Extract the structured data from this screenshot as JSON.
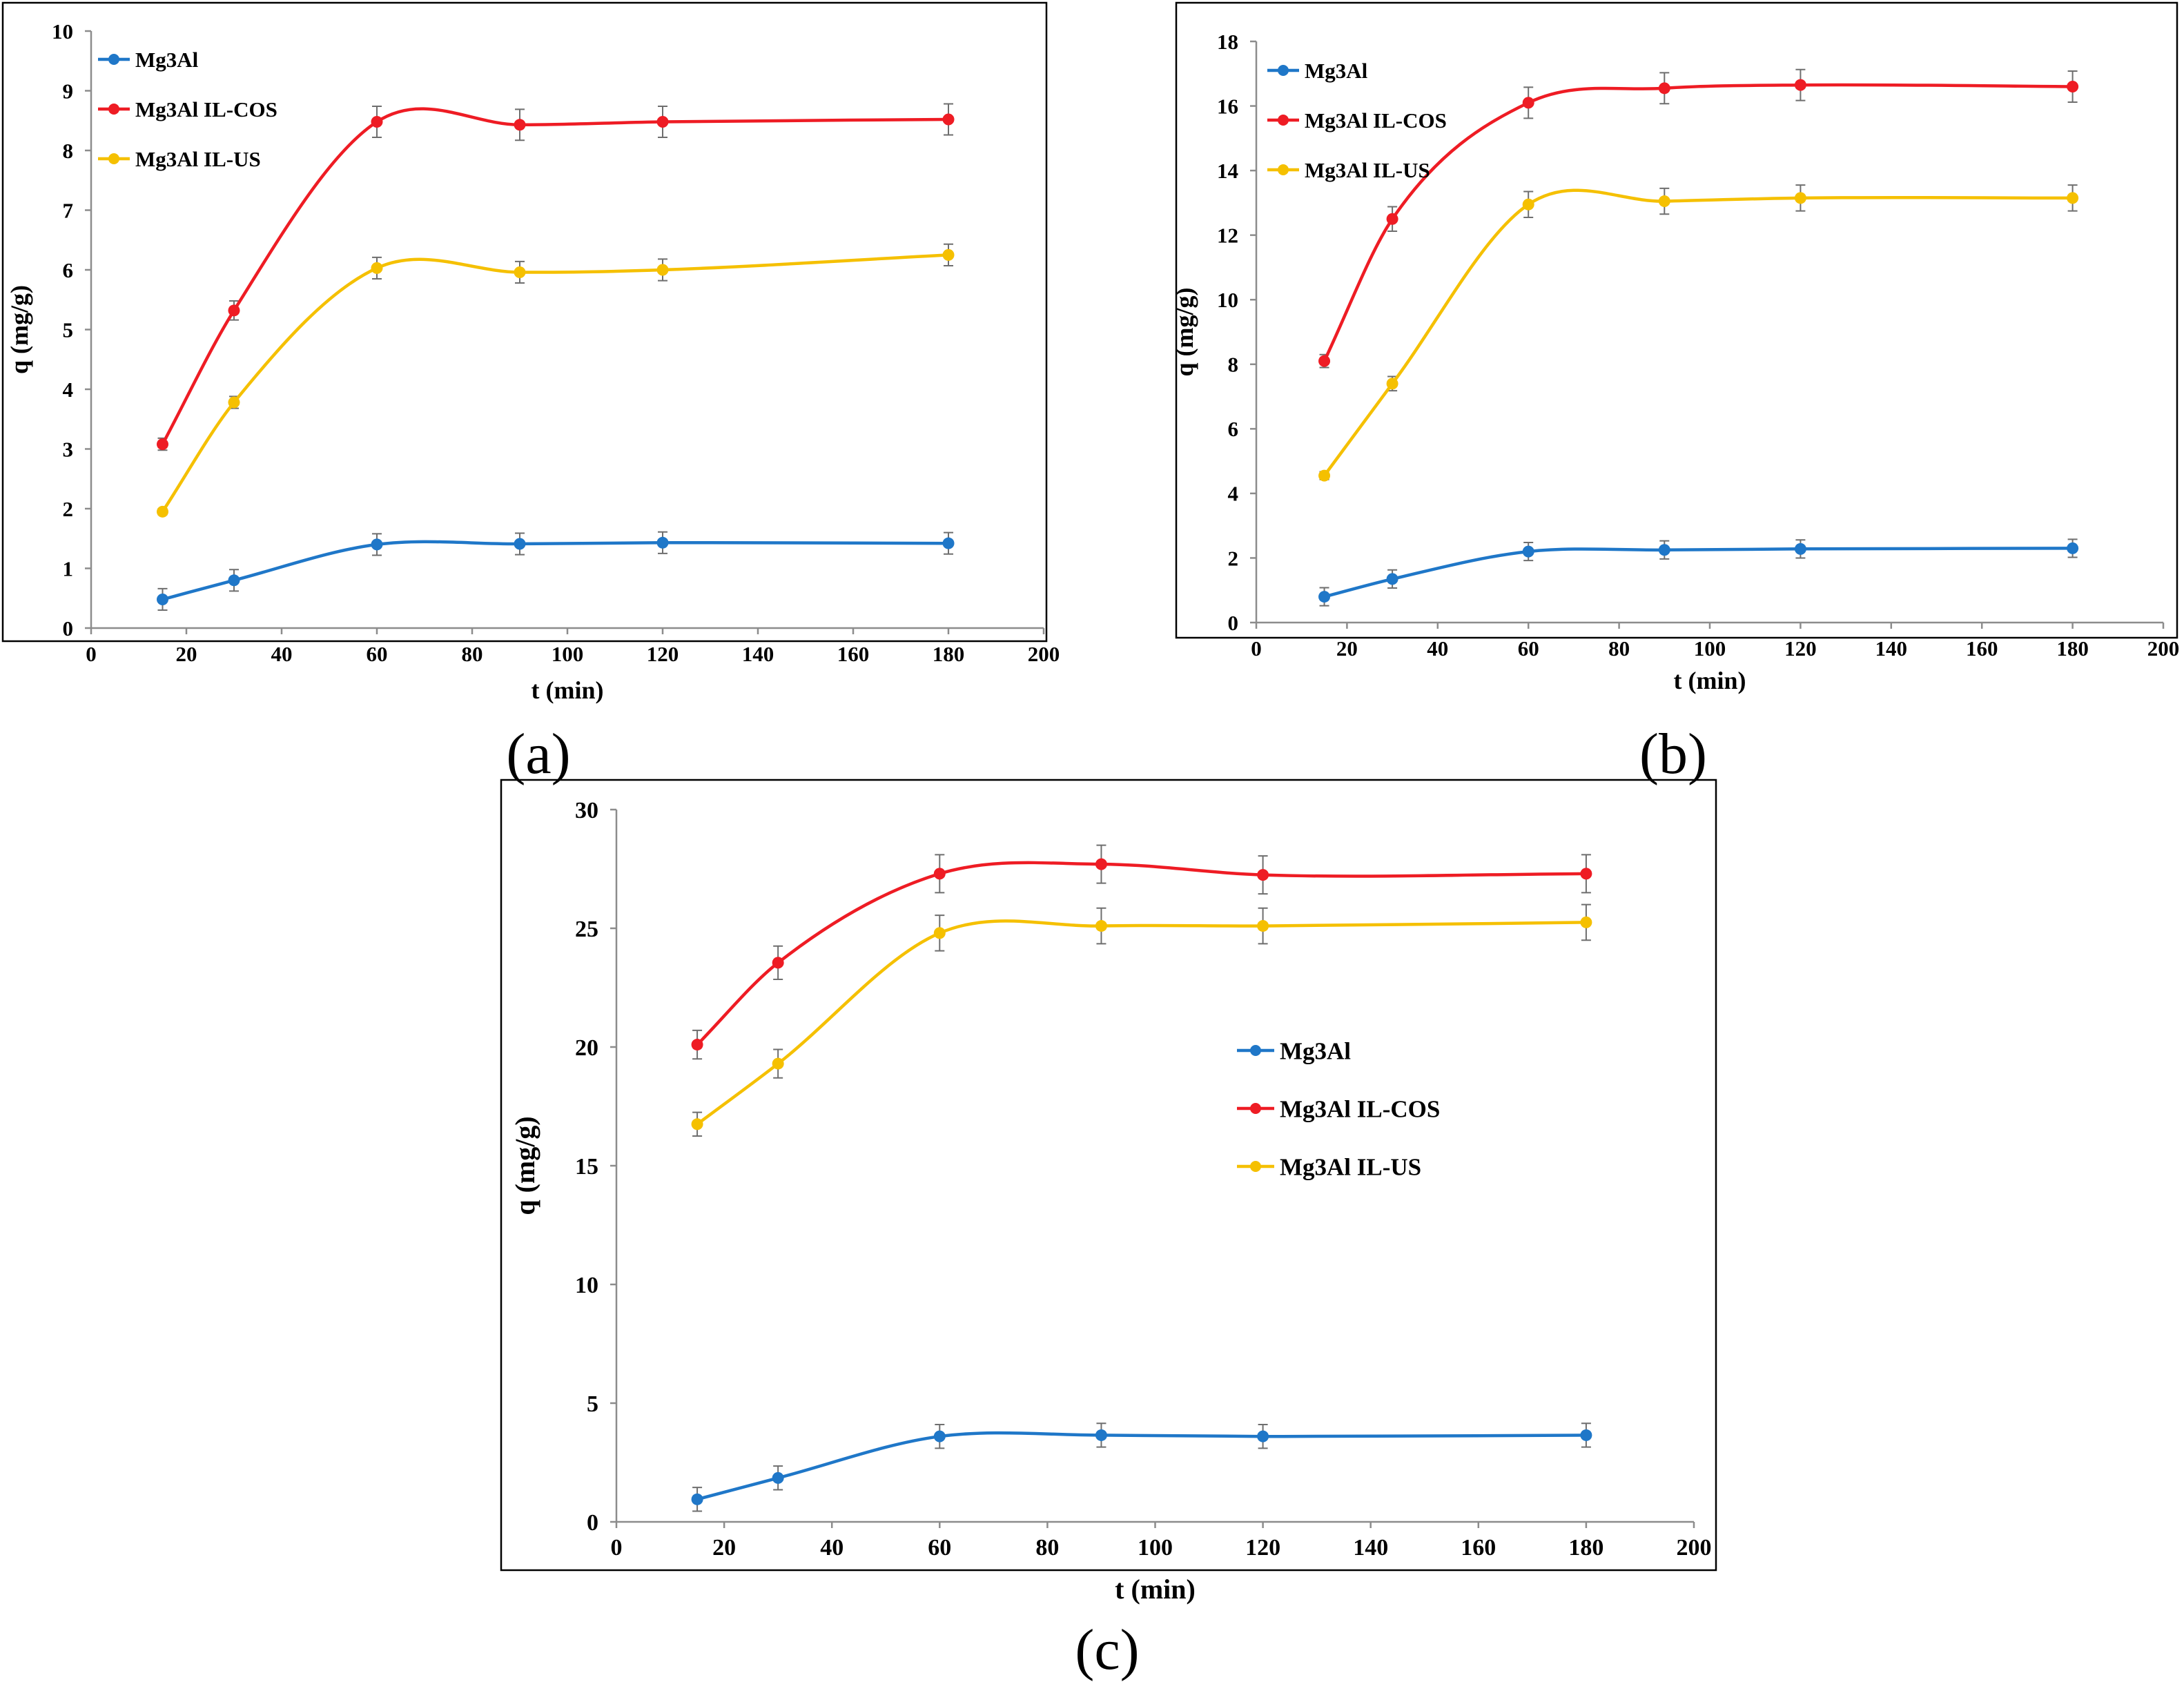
{
  "figure": {
    "panels": [
      "(a)",
      "(b)",
      "(c)"
    ]
  },
  "colors": {
    "Mg3Al": "#1f77c8",
    "Mg3Al IL-COS": "#ee1c24",
    "Mg3Al IL-US": "#f5c000"
  },
  "chart_data": [
    {
      "panel": "(a)",
      "type": "line",
      "xlabel": "t (min)",
      "ylabel": "q (mg/g)",
      "xlim": [
        0,
        200
      ],
      "ylim": [
        0,
        10
      ],
      "xticks": [
        0,
        20,
        40,
        60,
        80,
        100,
        120,
        140,
        160,
        180,
        200
      ],
      "yticks": [
        0,
        1,
        2,
        3,
        4,
        5,
        6,
        7,
        8,
        9,
        10
      ],
      "legend": "top-left",
      "x": [
        15,
        30,
        60,
        90,
        120,
        180
      ],
      "series": [
        {
          "name": "Mg3Al",
          "values": [
            0.48,
            0.8,
            1.4,
            1.41,
            1.43,
            1.42
          ],
          "errors": [
            0.18,
            0.18,
            0.18,
            0.18,
            0.18,
            0.18
          ]
        },
        {
          "name": "Mg3Al IL-COS",
          "values": [
            3.08,
            5.32,
            8.48,
            8.43,
            8.48,
            8.52
          ],
          "errors": [
            0.1,
            0.16,
            0.26,
            0.26,
            0.26,
            0.26
          ]
        },
        {
          "name": "Mg3Al IL-US",
          "values": [
            1.95,
            3.78,
            6.03,
            5.96,
            6.0,
            6.25
          ],
          "errors": [
            0.05,
            0.1,
            0.18,
            0.18,
            0.18,
            0.18
          ]
        }
      ]
    },
    {
      "panel": "(b)",
      "type": "line",
      "xlabel": "t (min)",
      "ylabel": "q (mg/g)",
      "xlim": [
        0,
        200
      ],
      "ylim": [
        0,
        18
      ],
      "xticks": [
        0,
        20,
        40,
        60,
        80,
        100,
        120,
        140,
        160,
        180,
        200
      ],
      "yticks": [
        0,
        2,
        4,
        6,
        8,
        10,
        12,
        14,
        16,
        18
      ],
      "legend": "top-left",
      "x": [
        15,
        30,
        60,
        90,
        120,
        180
      ],
      "series": [
        {
          "name": "Mg3Al",
          "values": [
            0.8,
            1.35,
            2.2,
            2.25,
            2.28,
            2.3
          ],
          "errors": [
            0.28,
            0.28,
            0.28,
            0.28,
            0.28,
            0.28
          ]
        },
        {
          "name": "Mg3Al IL-COS",
          "values": [
            8.1,
            12.5,
            16.1,
            16.55,
            16.65,
            16.6
          ],
          "errors": [
            0.2,
            0.38,
            0.48,
            0.48,
            0.48,
            0.48
          ]
        },
        {
          "name": "Mg3Al IL-US",
          "values": [
            4.55,
            7.4,
            12.95,
            13.05,
            13.15,
            13.15
          ],
          "errors": [
            0.12,
            0.22,
            0.4,
            0.4,
            0.4,
            0.4
          ]
        }
      ]
    },
    {
      "panel": "(c)",
      "type": "line",
      "xlabel": "t (min)",
      "ylabel": "q (mg/g)",
      "xlim": [
        0,
        200
      ],
      "ylim": [
        0,
        30
      ],
      "xticks": [
        0,
        20,
        40,
        60,
        80,
        100,
        120,
        140,
        160,
        180,
        200
      ],
      "yticks": [
        0,
        5,
        10,
        15,
        20,
        25,
        30
      ],
      "legend": "center-right",
      "x": [
        15,
        30,
        60,
        90,
        120,
        180
      ],
      "series": [
        {
          "name": "Mg3Al",
          "values": [
            0.95,
            1.85,
            3.6,
            3.65,
            3.6,
            3.65
          ],
          "errors": [
            0.5,
            0.5,
            0.5,
            0.5,
            0.5,
            0.5
          ]
        },
        {
          "name": "Mg3Al IL-COS",
          "values": [
            20.1,
            23.55,
            27.3,
            27.7,
            27.25,
            27.3
          ],
          "errors": [
            0.6,
            0.7,
            0.8,
            0.8,
            0.8,
            0.8
          ]
        },
        {
          "name": "Mg3Al IL-US",
          "values": [
            16.75,
            19.3,
            24.8,
            25.1,
            25.1,
            25.25
          ],
          "errors": [
            0.5,
            0.6,
            0.75,
            0.75,
            0.75,
            0.75
          ]
        }
      ]
    }
  ]
}
